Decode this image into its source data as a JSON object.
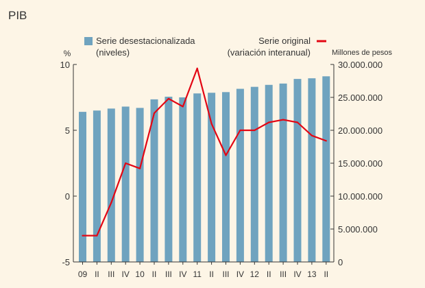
{
  "chart_data": {
    "type": "bar+line",
    "title": "PIB",
    "categories": [
      "09",
      "II",
      "III",
      "IV",
      "10",
      "II",
      "III",
      "IV",
      "11",
      "II",
      "III",
      "IV",
      "12",
      "II",
      "III",
      "IV",
      "13",
      "II"
    ],
    "series": [
      {
        "name": "Serie desestacionalizada (niveles)",
        "name_lines": [
          "Serie desestacionalizada",
          "(niveles)"
        ],
        "type": "bar",
        "axis": "right",
        "color": "#6fa3bf",
        "values": [
          22800000,
          23000000,
          23300000,
          23600000,
          23400000,
          24700000,
          25100000,
          25000000,
          25600000,
          25700000,
          25800000,
          26300000,
          26600000,
          26900000,
          27100000,
          27800000,
          27900000,
          28200000
        ]
      },
      {
        "name": "Serie original (variación interanual)",
        "name_lines": [
          "Serie original",
          "(variación interanual)"
        ],
        "type": "line",
        "axis": "left",
        "color": "#e30613",
        "values": [
          -3.0,
          -3.0,
          -0.5,
          2.5,
          2.1,
          6.3,
          7.4,
          6.8,
          9.7,
          5.5,
          3.1,
          5.0,
          5.0,
          5.6,
          5.8,
          5.6,
          4.6,
          4.2
        ]
      }
    ],
    "y_left": {
      "label": "%",
      "ylim": [
        -5,
        10
      ],
      "ticks": [
        -5,
        0,
        5,
        10
      ]
    },
    "y_right": {
      "label": "Millones de pesos",
      "ylim": [
        0,
        30000000
      ],
      "ticks": [
        0,
        5000000,
        10000000,
        15000000,
        20000000,
        25000000,
        30000000
      ],
      "tick_labels": [
        "0",
        "5.000.000",
        "10.000.000",
        "15.000.000",
        "20.000.000",
        "25.000.000",
        "30.000.000"
      ]
    },
    "grid": false,
    "legend": "top"
  }
}
